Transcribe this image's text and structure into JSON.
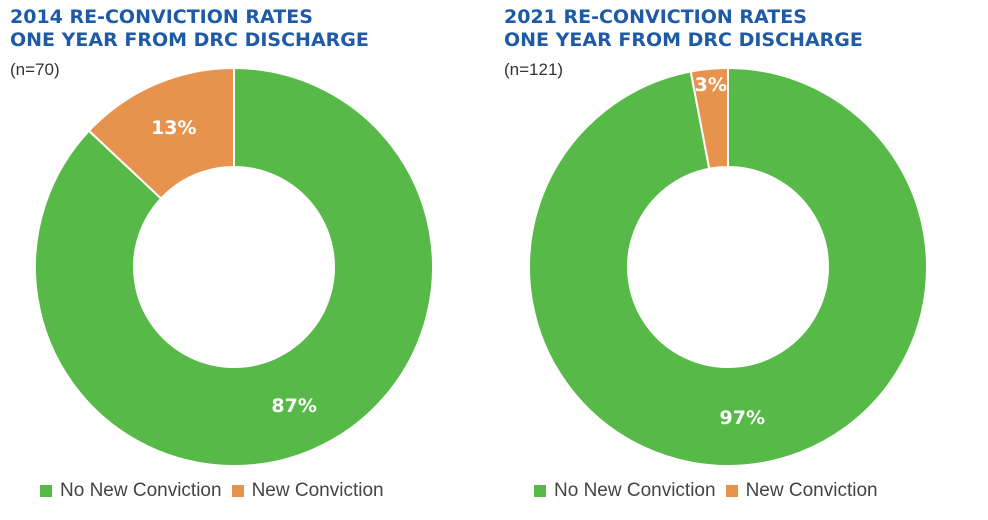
{
  "colors": {
    "no_new": "#57b947",
    "new": "#e8934d",
    "title": "#1f5aa6"
  },
  "chart_data": [
    {
      "type": "pie",
      "title_lines": [
        "2014 RE-CONVICTION RATES",
        "ONE YEAR FROM DRC DISCHARGE"
      ],
      "subtitle": "(n=70)",
      "categories": [
        "No New Conviction",
        "New Conviction"
      ],
      "values": [
        87,
        13
      ],
      "labels": [
        "87%",
        "13%"
      ],
      "legend": "bottom"
    },
    {
      "type": "pie",
      "title_lines": [
        "2021 RE-CONVICTION RATES",
        "ONE YEAR FROM DRC DISCHARGE"
      ],
      "subtitle": "(n=121)",
      "categories": [
        "No New Conviction",
        "New Conviction"
      ],
      "values": [
        97,
        3
      ],
      "labels": [
        "97%",
        "3%"
      ],
      "legend": "bottom"
    }
  ]
}
